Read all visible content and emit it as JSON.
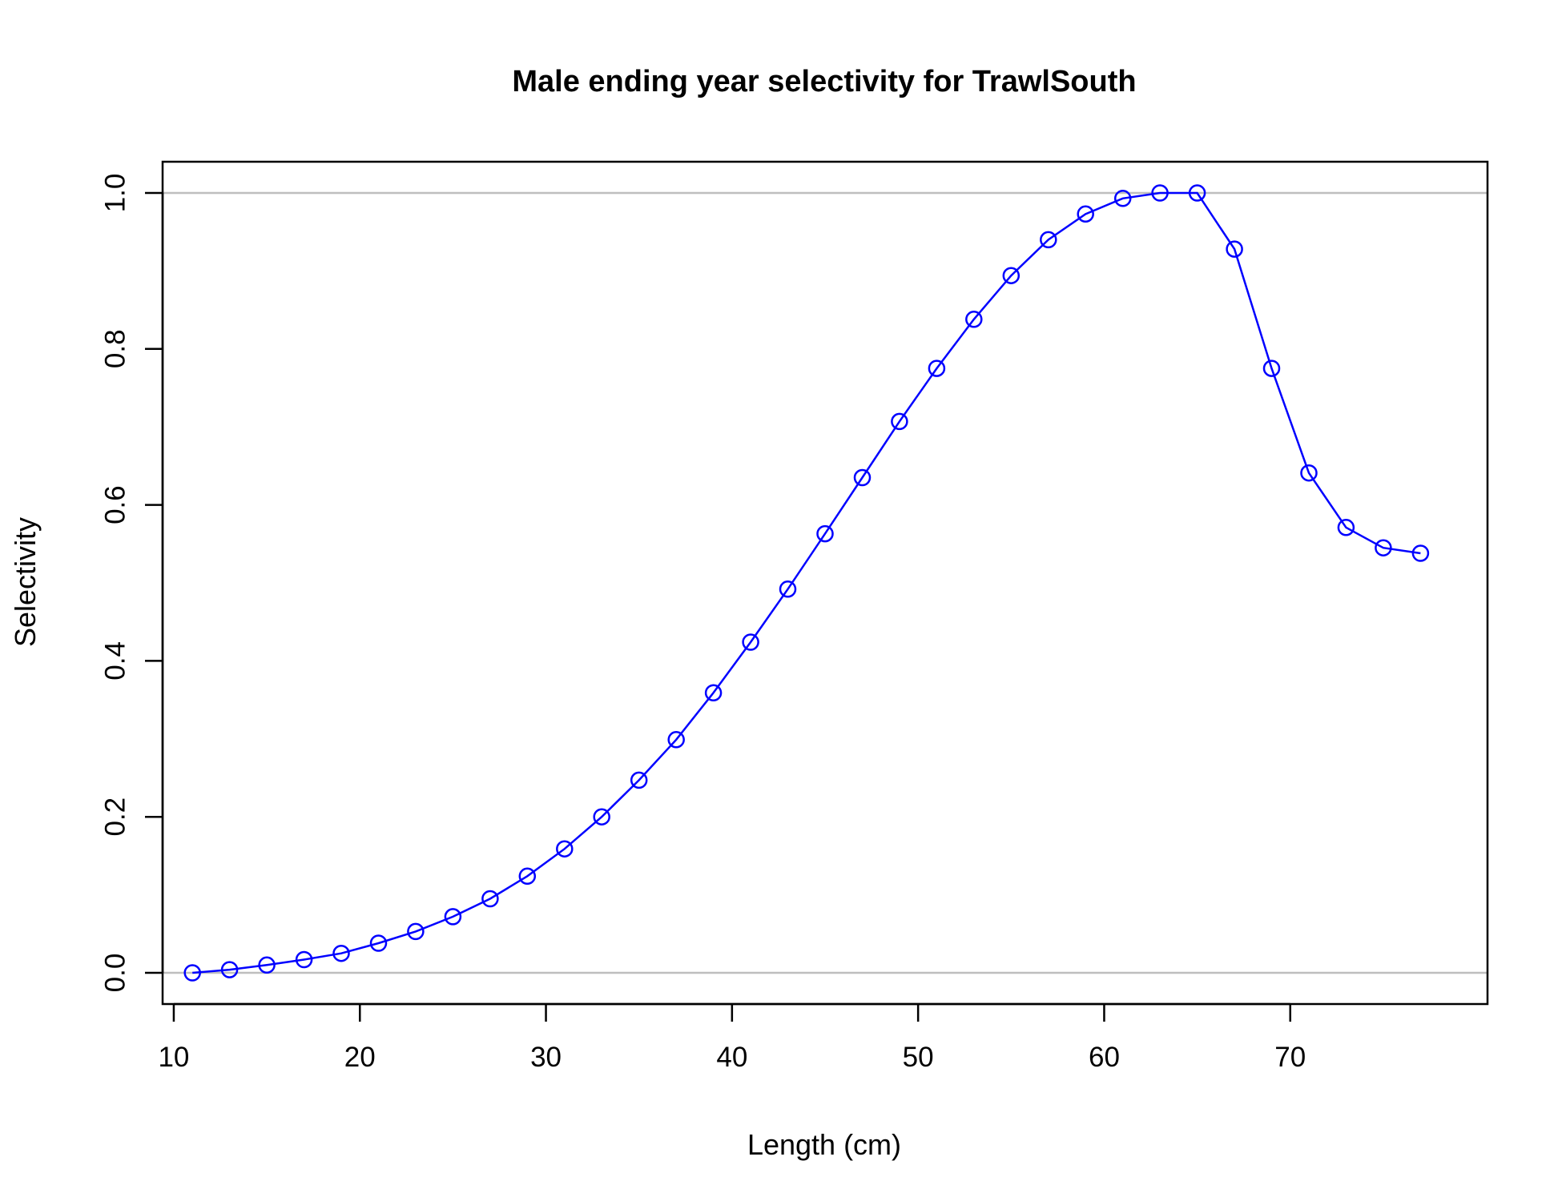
{
  "chart_data": {
    "type": "line",
    "title": "Male ending year selectivity for TrawlSouth",
    "xlabel": "Length (cm)",
    "ylabel": "Selectivity",
    "xlim": [
      9.4,
      80.6
    ],
    "ylim": [
      -0.04,
      1.04
    ],
    "xticks": [
      10,
      20,
      30,
      40,
      50,
      60,
      70
    ],
    "yticks": [
      0.0,
      0.2,
      0.4,
      0.6,
      0.8,
      1.0
    ],
    "ytick_labels": [
      "0.0",
      "0.2",
      "0.4",
      "0.6",
      "0.8",
      "1.0"
    ],
    "reference_lines_y": [
      0,
      1
    ],
    "reference_line_color": "#bebebe",
    "series": [
      {
        "color": "#0000ff",
        "marker": "open-circle",
        "x": [
          11,
          13,
          15,
          17,
          19,
          21,
          23,
          25,
          27,
          29,
          31,
          33,
          35,
          37,
          39,
          41,
          43,
          45,
          47,
          49,
          51,
          53,
          55,
          57,
          59,
          61,
          63,
          65,
          67,
          69,
          71,
          73,
          75,
          77
        ],
        "y": [
          0.0,
          0.004,
          0.01,
          0.017,
          0.025,
          0.038,
          0.053,
          0.072,
          0.095,
          0.124,
          0.159,
          0.2,
          0.247,
          0.299,
          0.359,
          0.424,
          0.492,
          0.563,
          0.635,
          0.707,
          0.775,
          0.838,
          0.894,
          0.94,
          0.973,
          0.993,
          1.0,
          1.0,
          0.928,
          0.775,
          0.641,
          0.571,
          0.545,
          0.538
        ]
      }
    ]
  }
}
